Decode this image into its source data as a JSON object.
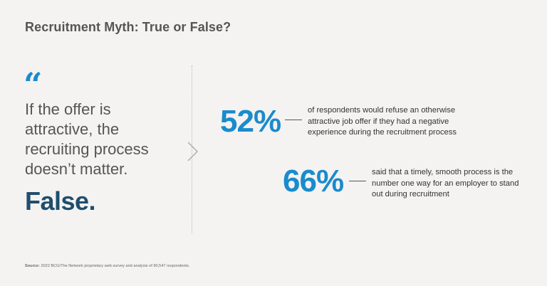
{
  "colors": {
    "accent": "#1a8bcd",
    "dark_blue": "#1f4e6e",
    "text_gray": "#555555",
    "background": "#f4f3f1"
  },
  "title": "Recruitment Myth: True or False?",
  "quote": {
    "mark": "“",
    "text": "If the offer is attractive, the recruiting process doesn’t matter.",
    "verdict": "False."
  },
  "icons": {
    "quote": "quote-mark-icon",
    "arrow": "chevron-right-icon"
  },
  "stats": [
    {
      "value": "52%",
      "description": "of respondents would refuse an otherwise attractive job offer if they had a negative experience during the recruitment process"
    },
    {
      "value": "66%",
      "description": "said that a timely, smooth process is the number one way for an employer to stand out during recruitment"
    }
  ],
  "source": {
    "label": "Source:",
    "text": "2022 BCG/The Network proprietary web survey and analysis of 90,547 respondents."
  }
}
